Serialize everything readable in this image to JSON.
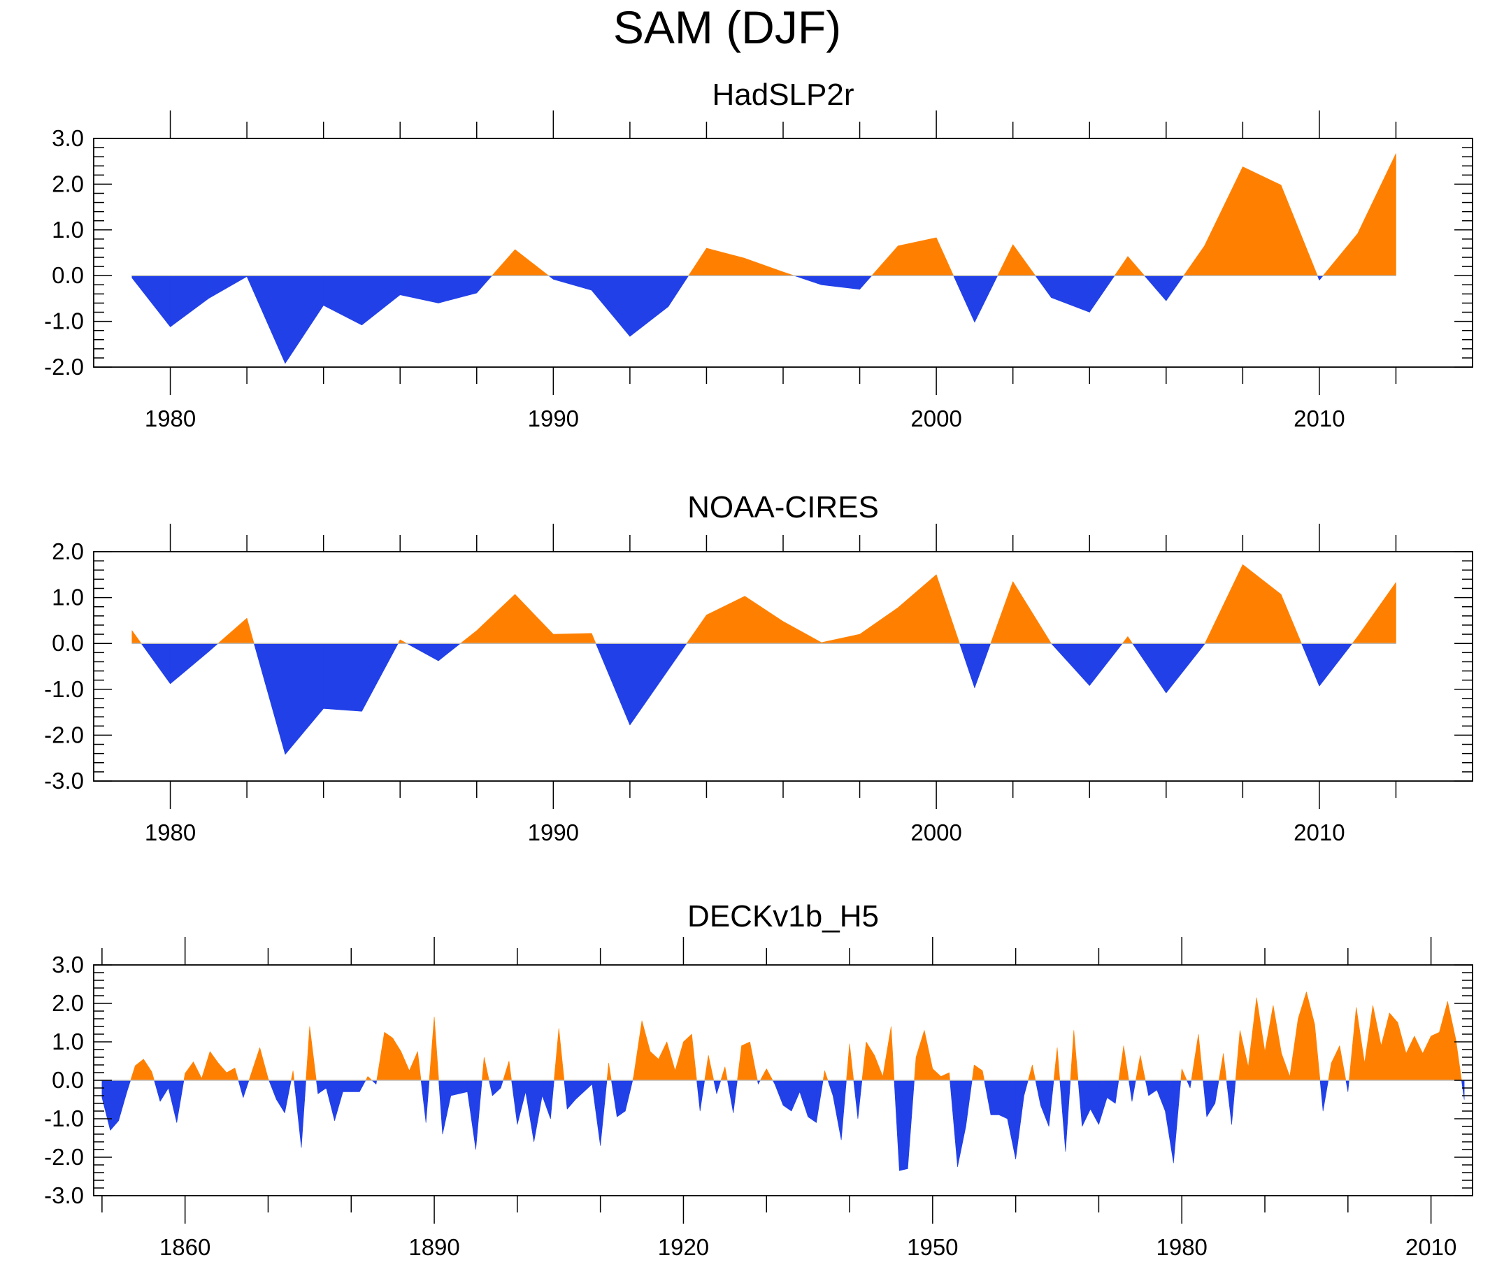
{
  "title": "SAM (DJF)",
  "colors": {
    "positive": "#ff8000",
    "negative": "#2140e8",
    "frame": "#000000",
    "zero_line": "#bdbdbd"
  },
  "chart_data": [
    {
      "type": "area",
      "title": "HadSLP2r",
      "xlim": [
        1978,
        2014
      ],
      "ylim": [
        -2.0,
        3.0
      ],
      "yticks": [
        -2.0,
        -1.0,
        0.0,
        1.0,
        2.0,
        3.0
      ],
      "ytick_labels": [
        "-2.0",
        "-1.0",
        "0.0",
        "1.0",
        "2.0",
        "3.0"
      ],
      "xticks_major": [
        1980,
        1990,
        2000,
        2010
      ],
      "xtick_labels": [
        "1980",
        "1990",
        "2000",
        "2010"
      ],
      "xticks_minor": [
        1982,
        1984,
        1986,
        1988,
        1992,
        1994,
        1996,
        1998,
        2002,
        2004,
        2006,
        2008,
        2012
      ],
      "fill_positive_color": "#ff8000",
      "fill_negative_color": "#2140e8",
      "x": [
        1979,
        1980,
        1981,
        1982,
        1983,
        1984,
        1985,
        1986,
        1987,
        1988,
        1989,
        1990,
        1991,
        1992,
        1993,
        1994,
        1995,
        1996,
        1997,
        1998,
        1999,
        2000,
        2001,
        2002,
        2003,
        2004,
        2005,
        2006,
        2007,
        2008,
        2009,
        2010,
        2011,
        2012
      ],
      "y": [
        -0.05,
        -1.12,
        -0.5,
        -0.02,
        -1.92,
        -0.65,
        -1.08,
        -0.42,
        -0.6,
        -0.38,
        0.57,
        -0.08,
        -0.32,
        -1.33,
        -0.68,
        0.6,
        0.38,
        0.08,
        -0.2,
        -0.3,
        0.65,
        0.83,
        -1.02,
        0.68,
        -0.48,
        -0.8,
        0.42,
        -0.55,
        0.65,
        2.38,
        1.98,
        -0.1,
        0.92,
        2.67
      ]
    },
    {
      "type": "area",
      "title": "NOAA-CIRES",
      "xlim": [
        1978,
        2014
      ],
      "ylim": [
        -3.0,
        2.0
      ],
      "yticks": [
        -3.0,
        -2.0,
        -1.0,
        0.0,
        1.0,
        2.0
      ],
      "ytick_labels": [
        "-3.0",
        "-2.0",
        "-1.0",
        "0.0",
        "1.0",
        "2.0"
      ],
      "xticks_major": [
        1980,
        1990,
        2000,
        2010
      ],
      "xtick_labels": [
        "1980",
        "1990",
        "2000",
        "2010"
      ],
      "xticks_minor": [
        1982,
        1984,
        1986,
        1988,
        1992,
        1994,
        1996,
        1998,
        2002,
        2004,
        2006,
        2008,
        2012
      ],
      "fill_positive_color": "#ff8000",
      "fill_negative_color": "#2140e8",
      "x": [
        1979,
        1980,
        1981,
        1982,
        1983,
        1984,
        1985,
        1986,
        1987,
        1988,
        1989,
        1990,
        1991,
        1992,
        1993,
        1994,
        1995,
        1996,
        1997,
        1998,
        1999,
        2000,
        2001,
        2002,
        2003,
        2004,
        2005,
        2006,
        2007,
        2008,
        2009,
        2010,
        2011,
        2012
      ],
      "y": [
        0.28,
        -0.88,
        -0.18,
        0.55,
        -2.42,
        -1.42,
        -1.48,
        0.08,
        -0.38,
        0.28,
        1.07,
        0.2,
        0.22,
        -1.78,
        -0.58,
        0.62,
        1.03,
        0.48,
        0.02,
        0.2,
        0.78,
        1.5,
        -0.97,
        1.35,
        0.0,
        -0.92,
        0.15,
        -1.08,
        -0.02,
        1.72,
        1.07,
        -0.93,
        0.15,
        1.33
      ]
    },
    {
      "type": "area",
      "title": "DECKv1b_H5",
      "xlim": [
        1849,
        2015
      ],
      "ylim": [
        -3.0,
        3.0
      ],
      "yticks": [
        -3.0,
        -2.0,
        -1.0,
        0.0,
        1.0,
        2.0,
        3.0
      ],
      "ytick_labels": [
        "-3.0",
        "-2.0",
        "-1.0",
        "0.0",
        "1.0",
        "2.0",
        "3.0"
      ],
      "xticks_major": [
        1860,
        1890,
        1920,
        1950,
        1980,
        2010
      ],
      "xtick_labels": [
        "1860",
        "1890",
        "1920",
        "1950",
        "1980",
        "2010"
      ],
      "xticks_minor": [
        1850,
        1870,
        1880,
        1900,
        1910,
        1930,
        1940,
        1960,
        1970,
        1990,
        2000
      ],
      "fill_positive_color": "#ff8000",
      "fill_negative_color": "#2140e8",
      "x": [
        1850,
        1851,
        1852,
        1853,
        1854,
        1855,
        1856,
        1857,
        1858,
        1859,
        1860,
        1861,
        1862,
        1863,
        1864,
        1865,
        1866,
        1867,
        1868,
        1869,
        1870,
        1871,
        1872,
        1873,
        1874,
        1875,
        1876,
        1877,
        1878,
        1879,
        1880,
        1881,
        1882,
        1883,
        1884,
        1885,
        1886,
        1887,
        1888,
        1889,
        1890,
        1891,
        1892,
        1893,
        1894,
        1895,
        1896,
        1897,
        1898,
        1899,
        1900,
        1901,
        1902,
        1903,
        1904,
        1905,
        1906,
        1907,
        1908,
        1909,
        1910,
        1911,
        1912,
        1913,
        1914,
        1915,
        1916,
        1917,
        1918,
        1919,
        1920,
        1921,
        1922,
        1923,
        1924,
        1925,
        1926,
        1927,
        1928,
        1929,
        1930,
        1931,
        1932,
        1933,
        1934,
        1935,
        1936,
        1937,
        1938,
        1939,
        1940,
        1941,
        1942,
        1943,
        1944,
        1945,
        1946,
        1947,
        1948,
        1949,
        1950,
        1951,
        1952,
        1953,
        1954,
        1955,
        1956,
        1957,
        1958,
        1959,
        1960,
        1961,
        1962,
        1963,
        1964,
        1965,
        1966,
        1967,
        1968,
        1969,
        1970,
        1971,
        1972,
        1973,
        1974,
        1975,
        1976,
        1977,
        1978,
        1979,
        1980,
        1981,
        1982,
        1983,
        1984,
        1985,
        1986,
        1987,
        1988,
        1989,
        1990,
        1991,
        1992,
        1993,
        1994,
        1995,
        1996,
        1997,
        1998,
        1999,
        2000,
        2001,
        2002,
        2003,
        2004,
        2005,
        2006,
        2007,
        2008,
        2009,
        2010,
        2011,
        2012,
        2013,
        2014
      ],
      "y": [
        -0.45,
        -1.3,
        -1.05,
        -0.3,
        0.38,
        0.55,
        0.22,
        -0.55,
        -0.2,
        -1.1,
        0.18,
        0.48,
        0.05,
        0.75,
        0.45,
        0.2,
        0.32,
        -0.45,
        0.2,
        0.85,
        0.05,
        -0.5,
        -0.85,
        0.25,
        -1.75,
        1.4,
        -0.35,
        -0.2,
        -1.05,
        -0.3,
        -0.3,
        -0.3,
        0.1,
        -0.1,
        1.25,
        1.1,
        0.75,
        0.25,
        0.75,
        -1.1,
        1.65,
        -1.4,
        -0.4,
        -0.35,
        -0.3,
        -1.8,
        0.6,
        -0.4,
        -0.2,
        0.5,
        -1.15,
        -0.3,
        -1.6,
        -0.4,
        -1.0,
        1.35,
        -0.75,
        -0.5,
        -0.3,
        -0.1,
        -1.7,
        0.45,
        -0.95,
        -0.8,
        0.1,
        1.55,
        0.75,
        0.55,
        1.0,
        0.25,
        1.0,
        1.2,
        -0.8,
        0.65,
        -0.35,
        0.35,
        -0.85,
        0.9,
        1.0,
        -0.1,
        0.3,
        -0.1,
        -0.65,
        -0.8,
        -0.3,
        -0.95,
        -1.1,
        0.25,
        -0.4,
        -1.55,
        0.95,
        -1.0,
        1.0,
        0.65,
        0.1,
        1.4,
        -2.35,
        -2.3,
        0.6,
        1.3,
        0.3,
        0.1,
        0.2,
        -2.25,
        -1.2,
        0.4,
        0.25,
        -0.9,
        -0.9,
        -1.0,
        -2.05,
        -0.4,
        0.4,
        -0.65,
        -1.2,
        0.85,
        -1.85,
        1.3,
        -1.2,
        -0.75,
        -1.15,
        -0.45,
        -0.6,
        0.9,
        -0.55,
        0.65,
        -0.4,
        -0.25,
        -0.8,
        -2.15,
        0.3,
        -0.2,
        1.2,
        -0.95,
        -0.6,
        0.7,
        -1.15,
        1.3,
        0.35,
        2.15,
        0.75,
        1.95,
        0.7,
        0.1,
        1.6,
        2.3,
        1.45,
        -0.8,
        0.45,
        0.9,
        -0.3,
        1.9,
        0.45,
        1.95,
        0.9,
        1.75,
        1.5,
        0.7,
        1.15,
        0.7,
        1.15,
        1.25,
        2.05,
        1.05,
        -0.5
      ]
    }
  ]
}
